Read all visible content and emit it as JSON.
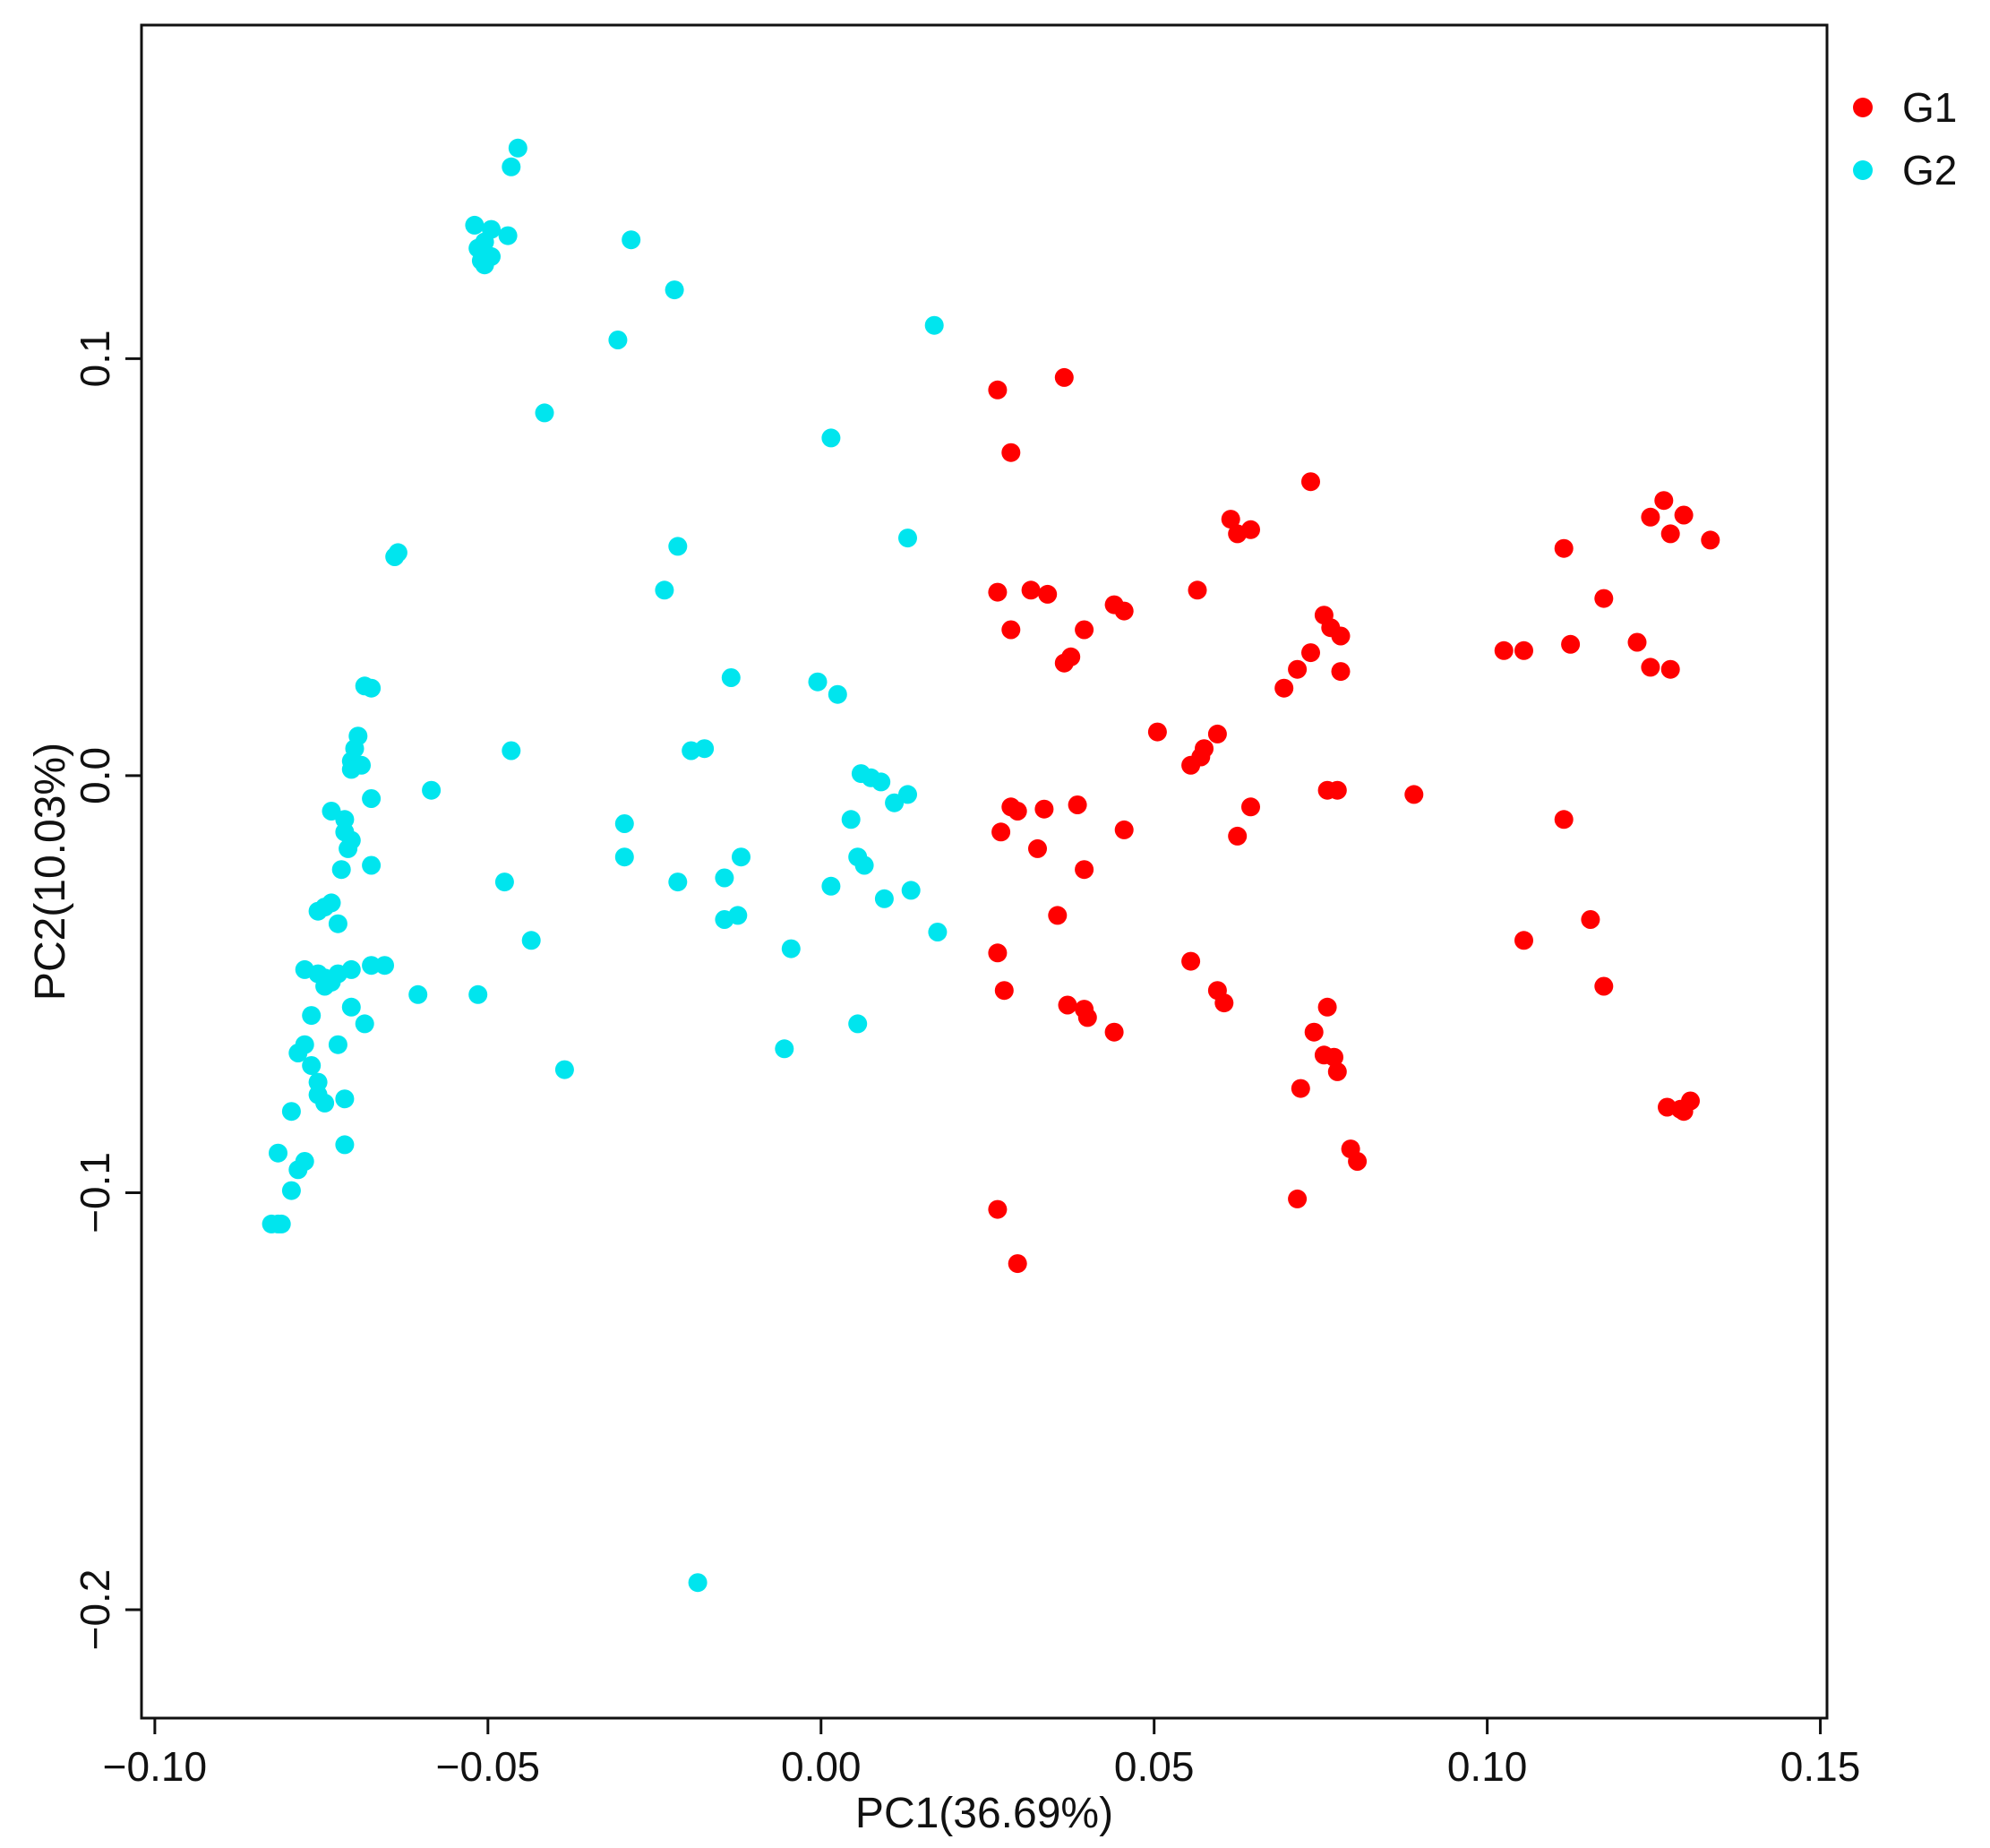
{
  "chart_data": {
    "type": "scatter",
    "title": "",
    "xlabel": "PC1(36.69%)",
    "ylabel": "PC2(10.03%)",
    "xlim": [
      -0.102,
      0.151
    ],
    "ylim": [
      -0.226,
      0.18
    ],
    "xticks": [
      -0.1,
      -0.05,
      0.0,
      0.05,
      0.1,
      0.15
    ],
    "xtick_labels": [
      "−0.10",
      "−0.05",
      "0.00",
      "0.05",
      "0.10",
      "0.15"
    ],
    "yticks": [
      -0.2,
      -0.1,
      0.0,
      0.1
    ],
    "ytick_labels": [
      "−0.2",
      "−0.1",
      "0.0",
      "0.1"
    ],
    "grid": false,
    "legend": "top-right-outside",
    "series": [
      {
        "name": "G1",
        "color": "#ff0000",
        "points": [
          [
            0.0265,
            0.0925
          ],
          [
            0.0365,
            0.0955
          ],
          [
            0.0285,
            0.0775
          ],
          [
            0.0265,
            0.044
          ],
          [
            0.0285,
            0.035
          ],
          [
            0.0315,
            0.0445
          ],
          [
            0.034,
            0.0435
          ],
          [
            0.0365,
            0.027
          ],
          [
            0.0375,
            0.0285
          ],
          [
            0.0395,
            0.035
          ],
          [
            0.044,
            0.041
          ],
          [
            0.0455,
            0.0395
          ],
          [
            0.0565,
            0.0445
          ],
          [
            0.0615,
            0.0615
          ],
          [
            0.0625,
            0.058
          ],
          [
            0.0645,
            0.059
          ],
          [
            0.0735,
            0.0705
          ],
          [
            0.0765,
            0.0355
          ],
          [
            0.0755,
            0.0385
          ],
          [
            0.078,
            0.0335
          ],
          [
            0.0735,
            0.0295
          ],
          [
            0.0715,
            0.0255
          ],
          [
            0.0695,
            0.021
          ],
          [
            0.078,
            0.025
          ],
          [
            0.0505,
            0.0105
          ],
          [
            0.0555,
            0.0025
          ],
          [
            0.057,
            0.0045
          ],
          [
            0.0575,
            0.0065
          ],
          [
            0.0595,
            0.01
          ],
          [
            0.0285,
            -0.0075
          ],
          [
            0.0295,
            -0.0085
          ],
          [
            0.0335,
            -0.008
          ],
          [
            0.0385,
            -0.007
          ],
          [
            0.027,
            -0.0135
          ],
          [
            0.0325,
            -0.0175
          ],
          [
            0.0455,
            -0.013
          ],
          [
            0.0395,
            -0.0225
          ],
          [
            0.0625,
            -0.0145
          ],
          [
            0.0645,
            -0.0075
          ],
          [
            0.076,
            -0.0035
          ],
          [
            0.0775,
            -0.0035
          ],
          [
            0.089,
            -0.0045
          ],
          [
            0.0355,
            -0.0335
          ],
          [
            0.0265,
            -0.0425
          ],
          [
            0.0275,
            -0.0515
          ],
          [
            0.037,
            -0.055
          ],
          [
            0.0395,
            -0.056
          ],
          [
            0.04,
            -0.058
          ],
          [
            0.044,
            -0.0615
          ],
          [
            0.0555,
            -0.0445
          ],
          [
            0.0595,
            -0.0515
          ],
          [
            0.0605,
            -0.0545
          ],
          [
            0.076,
            -0.0555
          ],
          [
            0.074,
            -0.0615
          ],
          [
            0.0755,
            -0.067
          ],
          [
            0.077,
            -0.0675
          ],
          [
            0.0775,
            -0.071
          ],
          [
            0.072,
            -0.075
          ],
          [
            0.0795,
            -0.0895
          ],
          [
            0.0805,
            -0.0925
          ],
          [
            0.0715,
            -0.1015
          ],
          [
            0.0265,
            -0.104
          ],
          [
            0.0295,
            -0.117
          ],
          [
            0.1025,
            0.03
          ],
          [
            0.1055,
            0.03
          ],
          [
            0.1125,
            0.0315
          ],
          [
            0.1115,
            0.0545
          ],
          [
            0.1175,
            0.0425
          ],
          [
            0.1225,
            0.032
          ],
          [
            0.1245,
            0.026
          ],
          [
            0.1275,
            0.0255
          ],
          [
            0.1265,
            0.066
          ],
          [
            0.1245,
            0.062
          ],
          [
            0.1275,
            0.058
          ],
          [
            0.1295,
            0.0625
          ],
          [
            0.1335,
            0.0565
          ],
          [
            0.1115,
            -0.0105
          ],
          [
            0.1055,
            -0.0395
          ],
          [
            0.1155,
            -0.0345
          ],
          [
            0.1175,
            -0.0505
          ],
          [
            0.127,
            -0.0795
          ],
          [
            0.129,
            -0.08
          ],
          [
            0.1305,
            -0.078
          ],
          [
            0.1295,
            -0.0805
          ]
        ]
      },
      {
        "name": "G2",
        "color": "#00e5ee",
        "points": [
          [
            -0.0455,
            0.1505
          ],
          [
            -0.0465,
            0.146
          ],
          [
            -0.052,
            0.132
          ],
          [
            -0.0495,
            0.131
          ],
          [
            -0.047,
            0.1295
          ],
          [
            -0.0505,
            0.128
          ],
          [
            -0.0515,
            0.1265
          ],
          [
            -0.0495,
            0.1245
          ],
          [
            -0.051,
            0.1235
          ],
          [
            -0.0505,
            0.1225
          ],
          [
            -0.0285,
            0.1285
          ],
          [
            -0.022,
            0.1165
          ],
          [
            -0.0305,
            0.1045
          ],
          [
            -0.0415,
            0.087
          ],
          [
            0.017,
            0.108
          ],
          [
            0.0015,
            0.081
          ],
          [
            0.013,
            0.057
          ],
          [
            -0.0215,
            0.055
          ],
          [
            -0.0235,
            0.0445
          ],
          [
            -0.0635,
            0.0535
          ],
          [
            -0.064,
            0.0525
          ],
          [
            -0.0685,
            0.0215
          ],
          [
            -0.0675,
            0.021
          ],
          [
            -0.0695,
            0.0095
          ],
          [
            -0.07,
            0.0065
          ],
          [
            -0.0705,
            0.0035
          ],
          [
            -0.069,
            0.0025
          ],
          [
            -0.0705,
            0.0015
          ],
          [
            -0.0675,
            -0.0055
          ],
          [
            -0.0585,
            -0.0035
          ],
          [
            -0.0465,
            0.006
          ],
          [
            -0.0195,
            0.006
          ],
          [
            -0.0175,
            0.0065
          ],
          [
            -0.0135,
            0.0235
          ],
          [
            -0.0005,
            0.0225
          ],
          [
            0.0025,
            0.0195
          ],
          [
            0.006,
            0.0005
          ],
          [
            0.0075,
            -0.0005
          ],
          [
            0.009,
            -0.0015
          ],
          [
            0.013,
            -0.0045
          ],
          [
            0.011,
            -0.0065
          ],
          [
            0.0045,
            -0.0105
          ],
          [
            0.0055,
            -0.0195
          ],
          [
            0.0065,
            -0.0215
          ],
          [
            0.0015,
            -0.0265
          ],
          [
            0.0095,
            -0.0295
          ],
          [
            0.0135,
            -0.0275
          ],
          [
            0.0175,
            -0.0375
          ],
          [
            0.0055,
            -0.0595
          ],
          [
            -0.0055,
            -0.0655
          ],
          [
            -0.0045,
            -0.0415
          ],
          [
            -0.0145,
            -0.0345
          ],
          [
            -0.0125,
            -0.0335
          ],
          [
            -0.0145,
            -0.0245
          ],
          [
            -0.012,
            -0.0195
          ],
          [
            -0.0215,
            -0.0255
          ],
          [
            -0.0295,
            -0.0115
          ],
          [
            -0.0295,
            -0.0195
          ],
          [
            -0.0475,
            -0.0255
          ],
          [
            -0.0435,
            -0.0395
          ],
          [
            -0.0515,
            -0.0525
          ],
          [
            -0.0605,
            -0.0525
          ],
          [
            -0.0385,
            -0.0705
          ],
          [
            -0.0185,
            -0.1935
          ],
          [
            -0.0735,
            -0.0085
          ],
          [
            -0.0715,
            -0.0105
          ],
          [
            -0.0715,
            -0.0135
          ],
          [
            -0.0705,
            -0.0155
          ],
          [
            -0.071,
            -0.0175
          ],
          [
            -0.072,
            -0.0225
          ],
          [
            -0.0675,
            -0.0215
          ],
          [
            -0.0755,
            -0.0325
          ],
          [
            -0.0745,
            -0.0315
          ],
          [
            -0.0735,
            -0.0305
          ],
          [
            -0.0725,
            -0.0355
          ],
          [
            -0.0775,
            -0.0465
          ],
          [
            -0.0755,
            -0.0475
          ],
          [
            -0.0745,
            -0.0485
          ],
          [
            -0.0735,
            -0.0495
          ],
          [
            -0.0745,
            -0.0505
          ],
          [
            -0.0725,
            -0.0475
          ],
          [
            -0.0705,
            -0.0465
          ],
          [
            -0.0675,
            -0.0455
          ],
          [
            -0.0655,
            -0.0455
          ],
          [
            -0.0705,
            -0.0555
          ],
          [
            -0.0685,
            -0.0595
          ],
          [
            -0.0725,
            -0.0645
          ],
          [
            -0.0765,
            -0.0575
          ],
          [
            -0.0775,
            -0.0645
          ],
          [
            -0.0785,
            -0.0665
          ],
          [
            -0.0765,
            -0.0695
          ],
          [
            -0.0755,
            -0.0735
          ],
          [
            -0.0755,
            -0.0765
          ],
          [
            -0.0745,
            -0.0785
          ],
          [
            -0.0715,
            -0.0775
          ],
          [
            -0.0795,
            -0.0805
          ],
          [
            -0.0775,
            -0.0925
          ],
          [
            -0.0785,
            -0.0945
          ],
          [
            -0.0815,
            -0.0905
          ],
          [
            -0.0795,
            -0.0995
          ],
          [
            -0.0715,
            -0.0885
          ],
          [
            -0.0825,
            -0.1075
          ],
          [
            -0.0815,
            -0.1075
          ],
          [
            -0.081,
            -0.1075
          ]
        ]
      }
    ]
  }
}
